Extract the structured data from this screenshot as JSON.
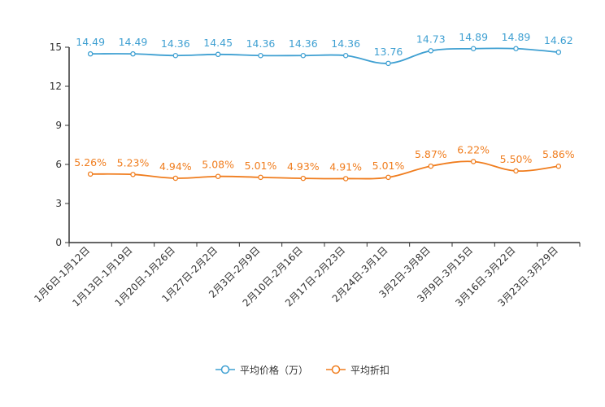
{
  "chart_data": {
    "type": "line",
    "title": "",
    "xlabel": "",
    "ylabel": "",
    "ylim": [
      0,
      15
    ],
    "yticks": [
      0,
      3,
      6,
      9,
      12,
      15
    ],
    "grid": false,
    "legend_position": "bottom-center",
    "categories": [
      "1月6日-1月12日",
      "1月13日-1月19日",
      "1月20日-1月26日",
      "1月27日-2月2日",
      "2月3日-2月9日",
      "2月10日-2月16日",
      "2月17日-2月23日",
      "2月24日-3月1日",
      "3月2日-3月8日",
      "3月9日-3月15日",
      "3月16日-3月22日",
      "3月23日-3月29日"
    ],
    "series": [
      {
        "name": "平均价格（万）",
        "color": "#3fa0d2",
        "values": [
          14.49,
          14.49,
          14.36,
          14.45,
          14.36,
          14.36,
          14.36,
          13.76,
          14.73,
          14.89,
          14.89,
          14.62
        ],
        "labels": [
          "14.49",
          "14.49",
          "14.36",
          "14.45",
          "14.36",
          "14.36",
          "14.36",
          "13.76",
          "14.73",
          "14.89",
          "14.89",
          "14.62"
        ]
      },
      {
        "name": "平均折扣",
        "color": "#f07d1e",
        "values": [
          5.26,
          5.23,
          4.94,
          5.08,
          5.01,
          4.93,
          4.91,
          5.01,
          5.87,
          6.22,
          5.5,
          5.86
        ],
        "labels": [
          "5.26%",
          "5.23%",
          "4.94%",
          "5.08%",
          "5.01%",
          "4.93%",
          "4.91%",
          "5.01%",
          "5.87%",
          "6.22%",
          "5.50%",
          "5.86%"
        ]
      }
    ]
  }
}
